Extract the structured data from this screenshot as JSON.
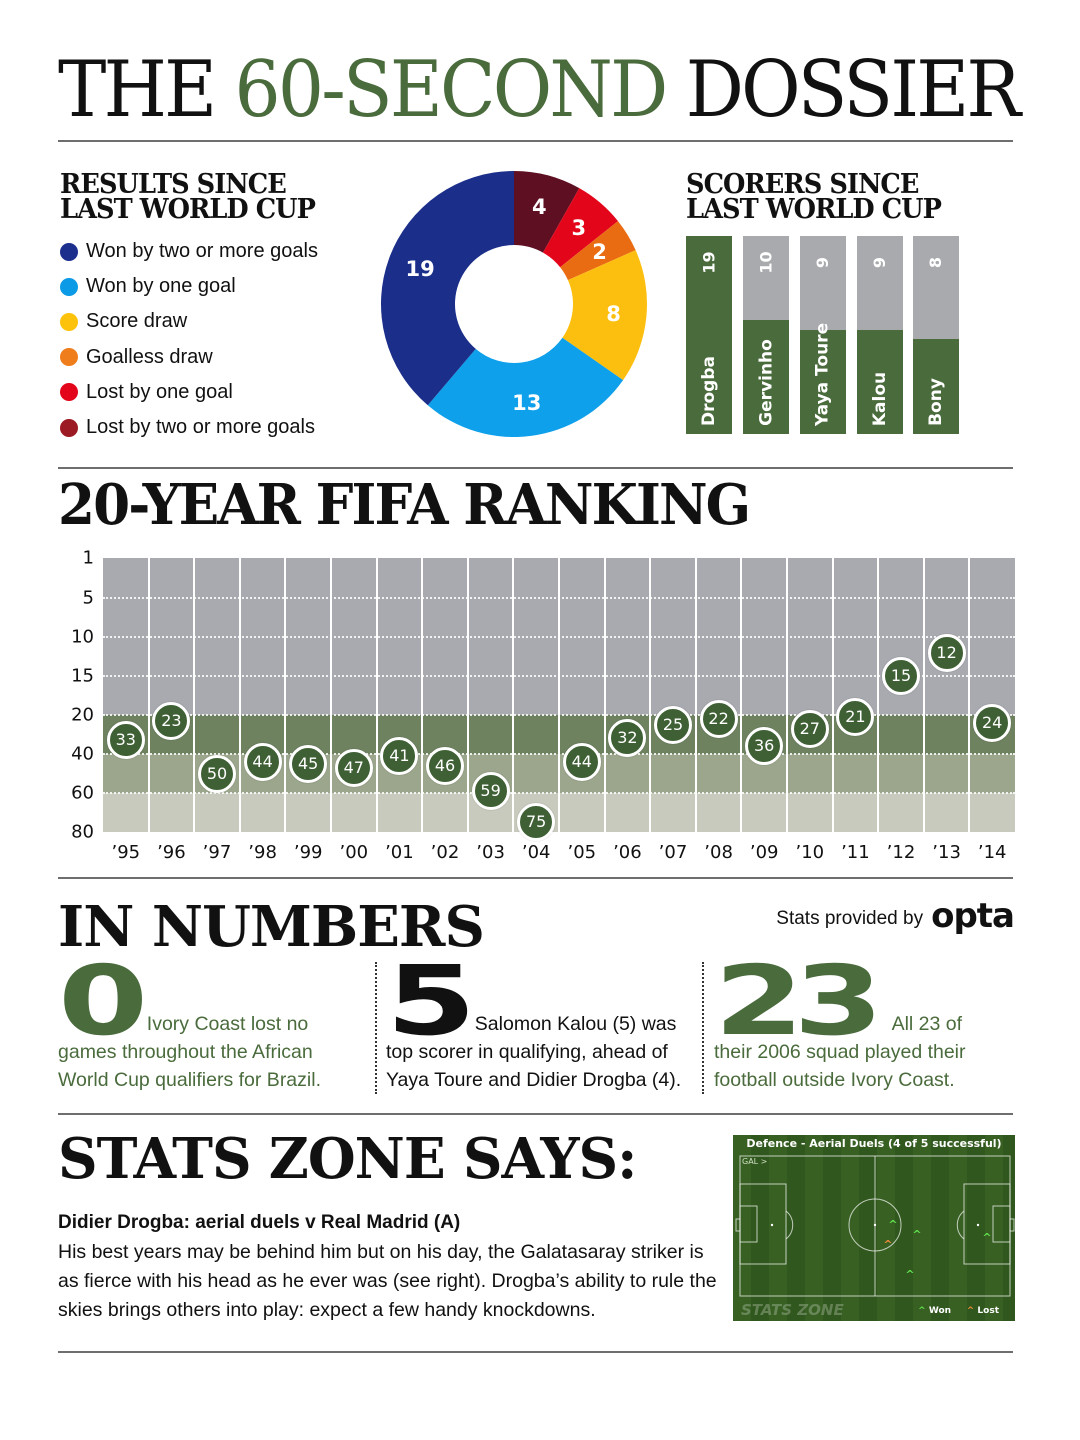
{
  "title": {
    "part1": "THE",
    "part2": "60-SECOND",
    "part3": "DOSSIER"
  },
  "results": {
    "heading_line1": "RESULTS SINCE",
    "heading_line2": "LAST WORLD CUP",
    "legend": [
      {
        "label": "Won by two or more goals",
        "color": "#1c2f8c"
      },
      {
        "label": "Won by one goal",
        "color": "#0b9ae6"
      },
      {
        "label": "Score draw",
        "color": "#fdc20c"
      },
      {
        "label": "Goalless draw",
        "color": "#f07d1b"
      },
      {
        "label": "Lost by one goal",
        "color": "#e3061b"
      },
      {
        "label": "Lost by two or more goals",
        "color": "#9b1a24"
      }
    ]
  },
  "scorers": {
    "heading_line1": "SCORERS SINCE",
    "heading_line2": "LAST WORLD CUP",
    "bars": [
      {
        "name": "Drogba",
        "goals": "19"
      },
      {
        "name": "Gervinho",
        "goals": "10"
      },
      {
        "name": "Yaya Toure",
        "goals": "9"
      },
      {
        "name": "Kalou",
        "goals": "9"
      },
      {
        "name": "Bony",
        "goals": "8"
      }
    ]
  },
  "ranking": {
    "heading": "20-YEAR FIFA RANKING",
    "y_ticks": [
      "1",
      "5",
      "10",
      "15",
      "20",
      "40",
      "60",
      "80"
    ],
    "x_ticks": [
      "’95",
      "’96",
      "’97",
      "’98",
      "’99",
      "’00",
      "’01",
      "’02",
      "’03",
      "’04",
      "’05",
      "’06",
      "’07",
      "’08",
      "’09",
      "’10",
      "’11",
      "’12",
      "’13",
      "’14"
    ],
    "values": [
      "33",
      "23",
      "50",
      "44",
      "45",
      "47",
      "41",
      "46",
      "59",
      "75",
      "44",
      "32",
      "25",
      "22",
      "36",
      "27",
      "21",
      "15",
      "12",
      "24"
    ]
  },
  "in_numbers": {
    "heading": "IN NUMBERS",
    "credit_label": "Stats provided by",
    "credit_logo": "opta",
    "items": [
      {
        "number": "0",
        "line1": "Ivory Coast lost no",
        "rest": "games throughout the African World Cup qualifiers for Brazil."
      },
      {
        "number": "5",
        "line1": "Salomon Kalou (5) was",
        "rest": "top scorer in qualifying, ahead of Yaya Toure and Didier Drogba (4)."
      },
      {
        "number": "23",
        "line1": "All 23 of",
        "rest": "their 2006 squad played their football outside Ivory Coast."
      }
    ]
  },
  "stats_zone": {
    "heading": "STATS ZONE SAYS:",
    "subheading": "Didier Drogba: aerial duels v Real Madrid (A)",
    "body": "His best years may be behind him but on his day, the Galatasaray striker is as fierce with his head as he ever was (see right). Drogba’s ability to rule the skies brings others into play: expect a few handy knockdowns.",
    "pitch": {
      "title": "Defence - Aerial Duels (4 of 5 successful)",
      "direction": "GAL >",
      "brand": "STATS ZONE",
      "legend_won": "Won",
      "legend_lost": "Lost"
    }
  },
  "colors": {
    "accent_green": "#4a6b3c",
    "bar_grey": "#a9aaae",
    "band_top": "#a9aab0",
    "band_20_40": "#6e8260",
    "band_40_60": "#9ca68d",
    "band_60_80": "#c7cabc"
  },
  "chart_data": [
    {
      "type": "pie",
      "title": "Results since last World Cup",
      "categories": [
        "Won by two or more goals",
        "Won by one goal",
        "Score draw",
        "Goalless draw",
        "Lost by one goal",
        "Lost by two or more goals"
      ],
      "values": [
        19,
        13,
        8,
        2,
        3,
        4
      ],
      "donut": true,
      "legend_position": "left"
    },
    {
      "type": "bar",
      "title": "Scorers since last World Cup",
      "categories": [
        "Drogba",
        "Gervinho",
        "Yaya Toure",
        "Kalou",
        "Bony"
      ],
      "values": [
        19,
        10,
        9,
        9,
        8
      ],
      "orientation": "vertical",
      "ylim": [
        0,
        19
      ]
    },
    {
      "type": "scatter",
      "title": "20-Year FIFA Ranking",
      "x": [
        "1995",
        "1996",
        "1997",
        "1998",
        "1999",
        "2000",
        "2001",
        "2002",
        "2003",
        "2004",
        "2005",
        "2006",
        "2007",
        "2008",
        "2009",
        "2010",
        "2011",
        "2012",
        "2013",
        "2014"
      ],
      "values": [
        33,
        23,
        50,
        44,
        45,
        47,
        41,
        46,
        59,
        75,
        44,
        32,
        25,
        22,
        36,
        27,
        21,
        15,
        12,
        24
      ],
      "ylabel": "FIFA ranking",
      "y_ticks": [
        1,
        5,
        10,
        15,
        20,
        40,
        60,
        80
      ],
      "y_inverted": true,
      "y_scale": "piecewise (1-20 linear expanded, 20-80 compressed)",
      "grid": true
    }
  ]
}
